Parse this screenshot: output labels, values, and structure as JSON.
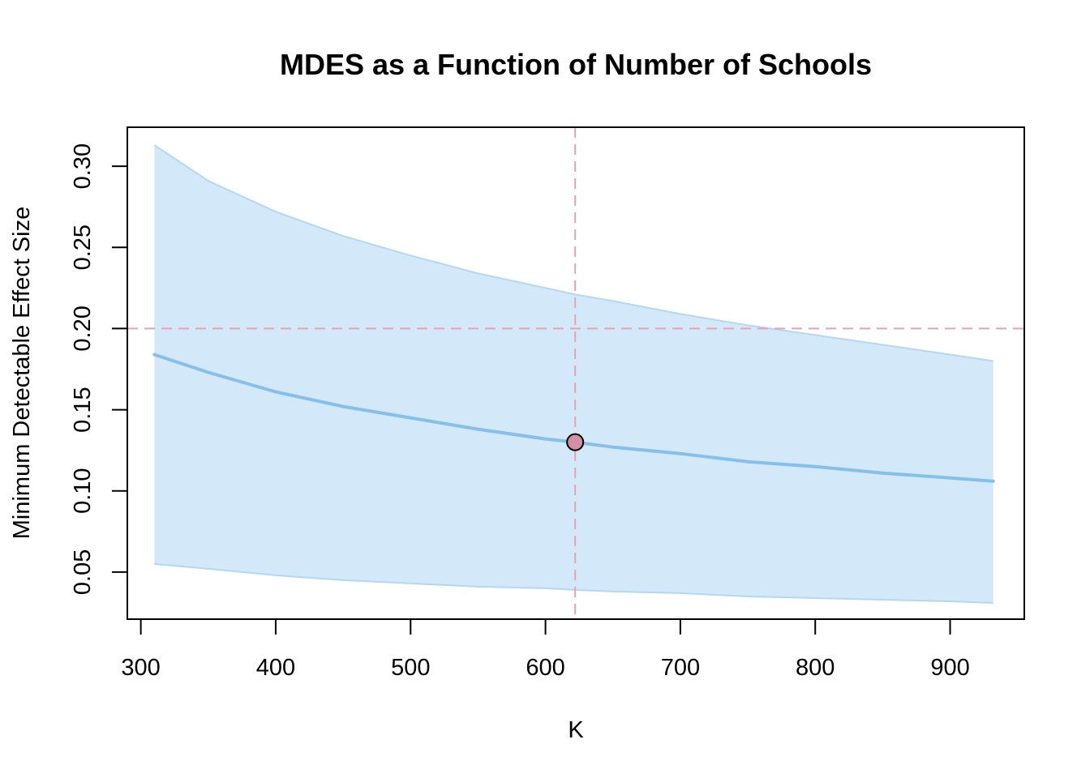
{
  "chart_data": {
    "type": "line",
    "title": "MDES as a Function of Number of Schools",
    "xlabel": "K",
    "ylabel": "Minimum Detectable Effect Size",
    "xlim": [
      290,
      955
    ],
    "ylim": [
      0.021,
      0.324
    ],
    "x_ticks": [
      300,
      400,
      500,
      600,
      700,
      800,
      900
    ],
    "y_ticks": [
      0.05,
      0.1,
      0.15,
      0.2,
      0.25,
      0.3
    ],
    "grid": false,
    "series": [
      {
        "role": "point-estimate",
        "color": "#85C0EC",
        "x": [
          310,
          350,
          400,
          450,
          500,
          550,
          600,
          622,
          650,
          700,
          750,
          800,
          850,
          900,
          932
        ],
        "y": [
          0.184,
          0.173,
          0.161,
          0.152,
          0.145,
          0.138,
          0.132,
          0.13,
          0.127,
          0.123,
          0.118,
          0.115,
          0.111,
          0.108,
          0.106
        ]
      }
    ],
    "band": {
      "fill_color": "#D3E8F8",
      "edge_color": "#B3D8F3",
      "x": [
        310,
        350,
        400,
        450,
        500,
        550,
        600,
        622,
        650,
        700,
        750,
        800,
        850,
        900,
        932
      ],
      "upper": [
        0.313,
        0.291,
        0.272,
        0.257,
        0.245,
        0.234,
        0.225,
        0.221,
        0.217,
        0.209,
        0.202,
        0.196,
        0.19,
        0.184,
        0.18
      ],
      "lower": [
        0.055,
        0.052,
        0.048,
        0.045,
        0.043,
        0.041,
        0.04,
        0.039,
        0.038,
        0.037,
        0.035,
        0.034,
        0.033,
        0.032,
        0.031
      ]
    },
    "reference_lines": {
      "color": "#E8A2B4",
      "vertical_x": 622,
      "horizontal_y": 0.2
    },
    "highlight_point": {
      "x": 622,
      "y": 0.13,
      "fill_color": "#D48FA3",
      "stroke_color": "#000000"
    }
  }
}
